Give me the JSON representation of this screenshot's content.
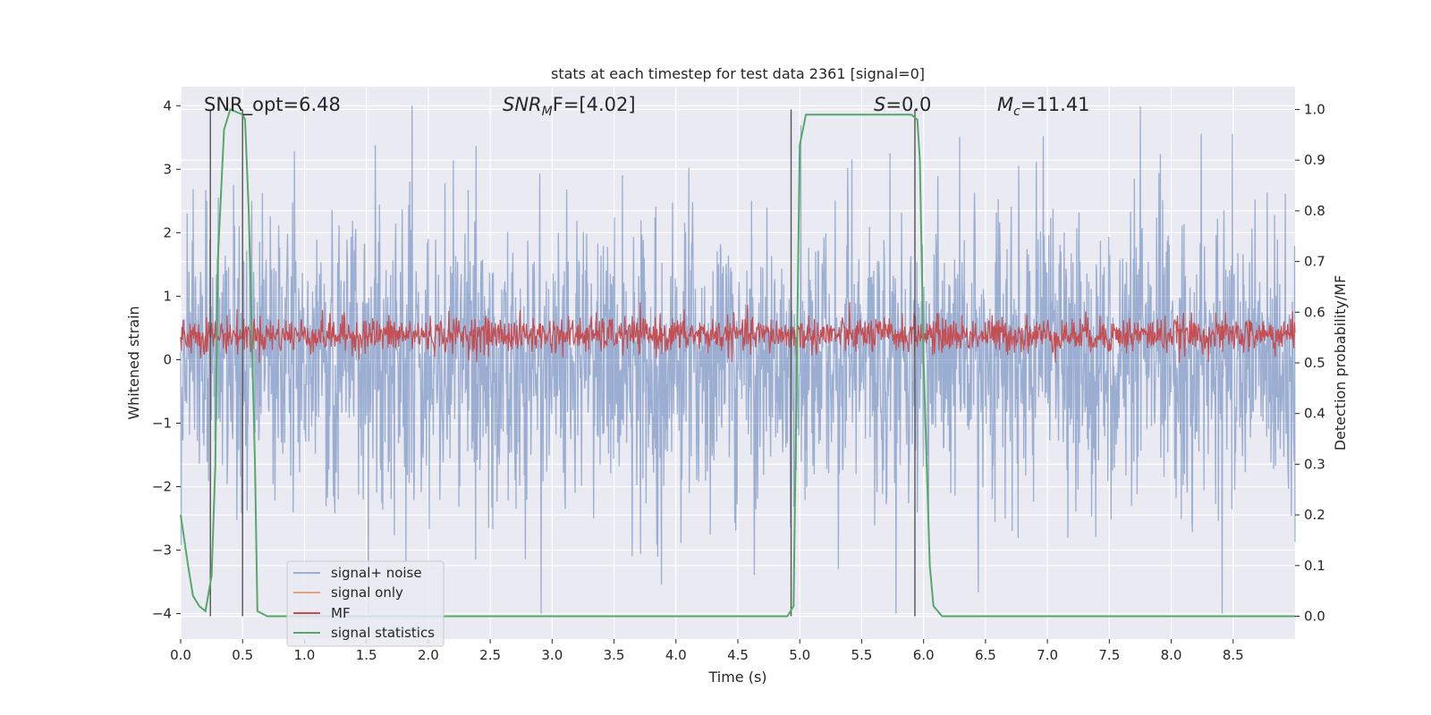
{
  "chart_data": {
    "type": "line",
    "title": "stats at each timestep for test data 2361 [signal=0]",
    "xlabel": "Time (s)",
    "ylabel": "Whitened strain",
    "y2label": "Detection probability/MF",
    "xlim": [
      0.0,
      9.0
    ],
    "ylim": [
      -4.4,
      4.3
    ],
    "y2lim": [
      -0.045,
      1.045
    ],
    "xticks": [
      0.0,
      0.5,
      1.0,
      1.5,
      2.0,
      2.5,
      3.0,
      3.5,
      4.0,
      4.5,
      5.0,
      5.5,
      6.0,
      6.5,
      7.0,
      7.5,
      8.0,
      8.5
    ],
    "xtick_labels": [
      "0.0",
      "0.5",
      "1.0",
      "1.5",
      "2.0",
      "2.5",
      "3.0",
      "3.5",
      "4.0",
      "4.5",
      "5.0",
      "5.5",
      "6.0",
      "6.5",
      "7.0",
      "7.5",
      "8.0",
      "8.5"
    ],
    "yticks": [
      4,
      3,
      2,
      1,
      0,
      -1,
      -2,
      -3,
      -4
    ],
    "ytick_labels": [
      "4",
      "3",
      "2",
      "1",
      "0",
      "−1",
      "−2",
      "−3",
      "−4"
    ],
    "y2ticks": [
      1.0,
      0.9,
      0.8,
      0.7,
      0.6,
      0.5,
      0.4,
      0.3,
      0.2,
      0.1,
      0.0
    ],
    "y2tick_labels": [
      "1.0",
      "0.9",
      "0.8",
      "0.7",
      "0.6",
      "0.5",
      "0.4",
      "0.3",
      "0.2",
      "0.1",
      "0.0"
    ],
    "grid": true,
    "legend_position": "lower-left",
    "legend": [
      "signal+ noise",
      "signal only",
      "MF",
      "signal statistics"
    ],
    "annotations": {
      "snr_opt": "SNR_opt=6.48",
      "snr_mf": "SNR",
      "snr_mf_sub": "M",
      "snr_mf_rest": "F=[4.02]",
      "s_italic": "S",
      "s_value": "=0.0",
      "mc_italic": "M",
      "mc_sub": "c",
      "mc_value": "=11.41"
    },
    "series": [
      {
        "name": "signal+ noise",
        "color": "#4c72b0",
        "description": "dense noise trace, approx amplitude +/-2.5 peaking near +/-4",
        "envelope_max": 4.0,
        "envelope_min": -4.0
      },
      {
        "name": "signal only",
        "color": "#dd8452",
        "values": []
      },
      {
        "name": "MF",
        "color": "#c44e52",
        "axis": "right",
        "range": [
          0.5,
          0.62
        ]
      },
      {
        "name": "signal statistics",
        "color": "#55a868",
        "axis": "right",
        "x": [
          0.0,
          0.06,
          0.1,
          0.15,
          0.2,
          0.25,
          0.28,
          0.3,
          0.35,
          0.4,
          0.45,
          0.5,
          0.52,
          0.55,
          0.6,
          0.62,
          0.7,
          4.9,
          4.95,
          5.0,
          5.05,
          5.1,
          5.6,
          5.9,
          5.95,
          5.97,
          6.0,
          6.05,
          6.08,
          6.15,
          9.0
        ],
        "y": [
          0.2,
          0.1,
          0.04,
          0.02,
          0.01,
          0.08,
          0.3,
          0.7,
          0.96,
          1.0,
          0.995,
          0.99,
          0.98,
          0.8,
          0.3,
          0.01,
          0.0,
          0.0,
          0.02,
          0.93,
          0.99,
          0.99,
          0.99,
          0.99,
          0.98,
          0.9,
          0.5,
          0.1,
          0.02,
          0.0,
          0.0
        ]
      }
    ],
    "vertical_markers": [
      0.24,
      0.5,
      4.93,
      5.93
    ]
  }
}
